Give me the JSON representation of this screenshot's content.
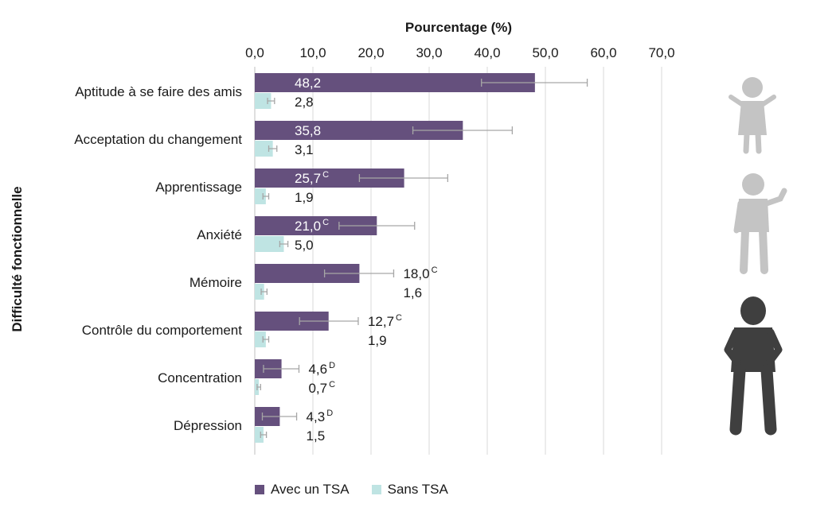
{
  "chart_data": {
    "type": "bar",
    "orientation": "horizontal",
    "title": "Pourcentage (%)",
    "xlabel": "Pourcentage (%)",
    "ylabel": "Difficulté fonctionnelle",
    "xlim": [
      0,
      70
    ],
    "xticks": [
      "0,0",
      "10,0",
      "20,0",
      "30,0",
      "40,0",
      "50,0",
      "60,0",
      "70,0"
    ],
    "xtick_values": [
      0,
      10,
      20,
      30,
      40,
      50,
      60,
      70
    ],
    "grid": true,
    "legend_position": "bottom-left",
    "categories": [
      "Aptitude à se faire des amis",
      "Acceptation du changement",
      "Apprentissage",
      "Anxiété",
      "Mémoire",
      "Contrôle du comportement",
      "Concentration",
      "Dépression"
    ],
    "series": [
      {
        "name": "Avec un TSA",
        "color": "#65507d",
        "values": [
          48.2,
          35.8,
          25.7,
          21.0,
          18.0,
          12.7,
          4.6,
          4.3
        ],
        "labels": [
          "48,2",
          "35,8",
          "25,7",
          "21,0",
          "18,0",
          "12,7",
          "4,6",
          "4,3"
        ],
        "flags": [
          "",
          "",
          "C",
          "C",
          "C",
          "C",
          "D",
          "D"
        ],
        "error_low": [
          39.0,
          27.2,
          18.0,
          14.5,
          12.0,
          7.7,
          1.5,
          1.3
        ],
        "error_high": [
          57.2,
          44.3,
          33.2,
          27.5,
          23.9,
          17.8,
          7.6,
          7.2
        ]
      },
      {
        "name": "Sans TSA",
        "color": "#bfe4e3",
        "values": [
          2.8,
          3.1,
          1.9,
          5.0,
          1.6,
          1.9,
          0.7,
          1.5
        ],
        "labels": [
          "2,8",
          "3,1",
          "1,9",
          "5,0",
          "1,6",
          "1,9",
          "0,7",
          "1,5"
        ],
        "flags": [
          "",
          "",
          "",
          "",
          "",
          "",
          "C",
          ""
        ],
        "error_low": [
          2.2,
          2.4,
          1.4,
          4.3,
          1.1,
          1.4,
          0.4,
          1.0
        ],
        "error_high": [
          3.4,
          3.8,
          2.4,
          5.7,
          2.1,
          2.4,
          1.0,
          2.0
        ]
      }
    ]
  },
  "illustrations": [
    "child-figure-icon",
    "boy-waving-figure-icon",
    "teen-figure-icon"
  ]
}
